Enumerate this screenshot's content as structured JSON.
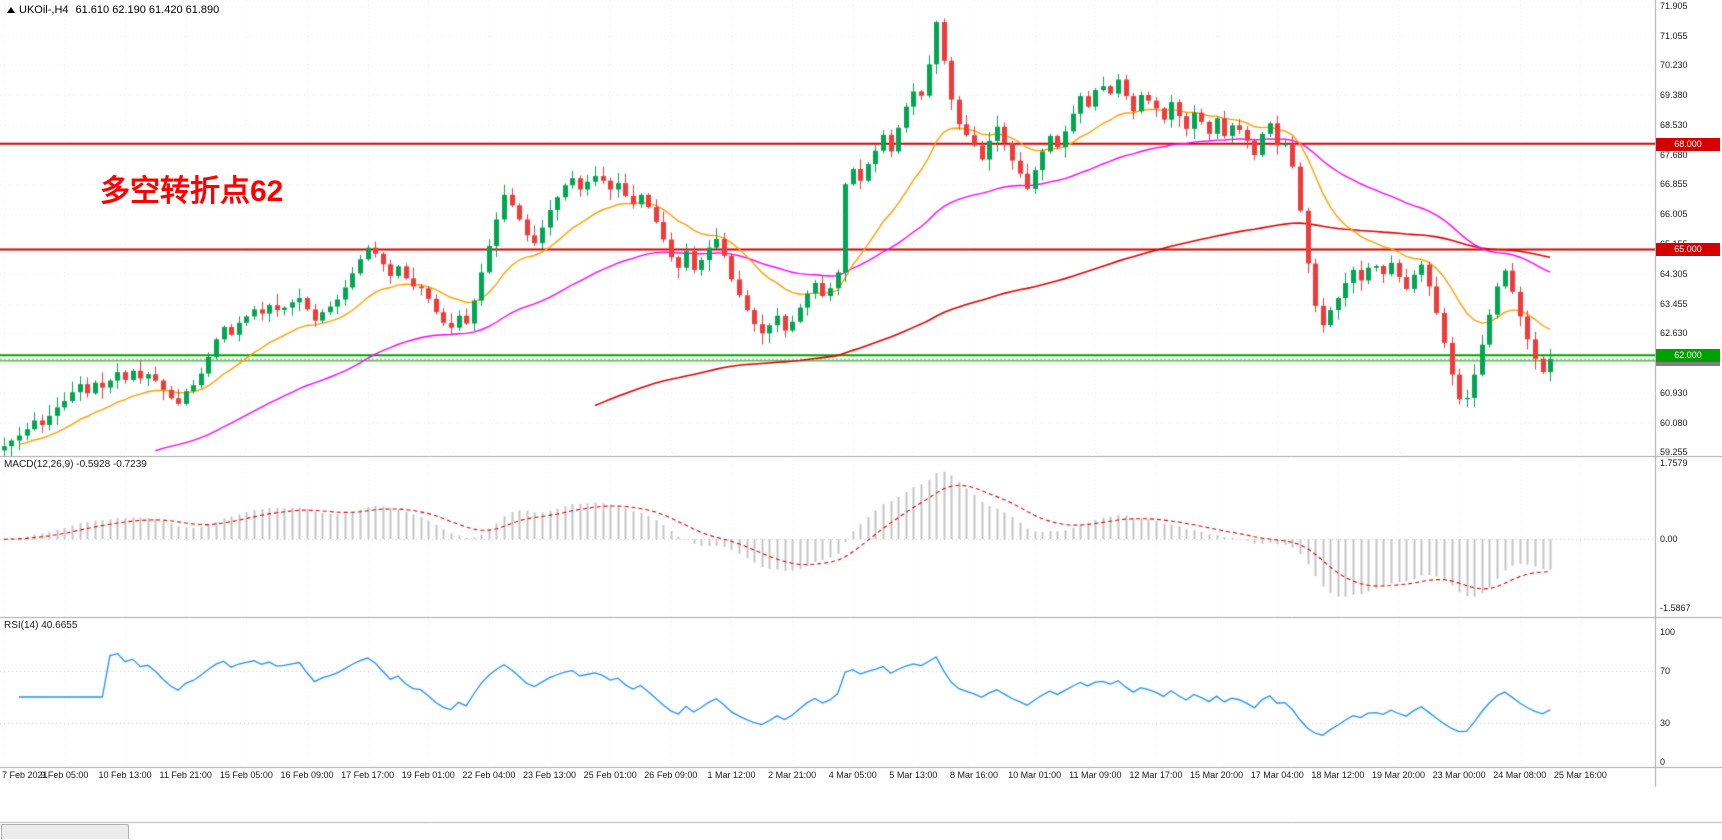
{
  "header": {
    "symbol": "UKOil-,H4",
    "ohlc": "61.610 62.190 61.420 61.890"
  },
  "annotation": {
    "text": "多空转折点62",
    "color": "#ff0000"
  },
  "bottom_tab": {
    "label": ""
  },
  "chart_data": {
    "type": "candlestick",
    "symbol": "UKOil-",
    "timeframe": "H4",
    "title": "UKOil-,H4",
    "ylim": [
      59.255,
      71.905
    ],
    "grid": true,
    "y_tick_labels": [
      "71.905",
      "71.055",
      "70.230",
      "69.380",
      "68.530",
      "67.680",
      "66.855",
      "66.005",
      "65.155",
      "64.305",
      "63.455",
      "62.630",
      "61.780",
      "60.930",
      "60.080",
      "59.255"
    ],
    "x_tick_labels": [
      "7 Feb 2021",
      "9 Feb 05:00",
      "10 Feb 13:00",
      "11 Feb 21:00",
      "15 Feb 05:00",
      "16 Feb 09:00",
      "17 Feb 17:00",
      "19 Feb 01:00",
      "22 Feb 04:00",
      "23 Feb 13:00",
      "25 Feb 01:00",
      "26 Feb 09:00",
      "1 Mar 12:00",
      "2 Mar 21:00",
      "4 Mar 05:00",
      "5 Mar 13:00",
      "8 Mar 16:00",
      "10 Mar 01:00",
      "11 Mar 09:00",
      "12 Mar 17:00",
      "15 Mar 20:00",
      "17 Mar 04:00",
      "18 Mar 12:00",
      "19 Mar 20:00",
      "23 Mar 00:00",
      "24 Mar 08:00",
      "25 Mar 16:00"
    ],
    "closes": [
      59.42,
      59.58,
      59.72,
      59.9,
      60.15,
      60.02,
      60.28,
      60.52,
      60.7,
      60.95,
      61.18,
      60.92,
      61.22,
      61.08,
      61.28,
      61.52,
      61.3,
      61.56,
      61.34,
      61.46,
      61.28,
      61.02,
      60.78,
      60.62,
      60.98,
      61.15,
      61.48,
      61.95,
      62.45,
      62.8,
      62.58,
      62.92,
      63.1,
      63.3,
      63.18,
      63.42,
      63.28,
      63.35,
      63.5,
      63.62,
      63.3,
      62.98,
      63.22,
      63.38,
      63.58,
      63.92,
      64.32,
      64.72,
      65.05,
      64.88,
      64.58,
      64.25,
      64.52,
      64.18,
      63.95,
      63.9,
      63.6,
      63.22,
      62.92,
      62.78,
      63.12,
      62.9,
      63.55,
      64.35,
      65.1,
      65.85,
      66.55,
      66.25,
      65.85,
      65.4,
      65.18,
      65.62,
      66.12,
      66.48,
      66.82,
      67.02,
      66.7,
      66.92,
      67.08,
      66.95,
      66.7,
      66.88,
      66.52,
      66.28,
      66.55,
      66.2,
      65.78,
      65.28,
      64.78,
      64.48,
      64.95,
      64.42,
      64.7,
      65.05,
      65.3,
      64.82,
      64.15,
      63.7,
      63.28,
      62.88,
      62.62,
      62.85,
      63.12,
      62.7,
      62.95,
      63.35,
      63.75,
      64.05,
      63.68,
      63.9,
      64.35,
      66.85,
      67.28,
      66.95,
      67.42,
      67.8,
      68.25,
      67.78,
      68.45,
      69.05,
      69.48,
      69.36,
      70.25,
      71.45,
      70.35,
      69.25,
      68.55,
      68.24,
      67.95,
      67.55,
      68.08,
      68.48,
      68.02,
      67.52,
      67.15,
      66.72,
      67.25,
      67.78,
      68.22,
      67.9,
      68.35,
      68.85,
      69.35,
      69.05,
      69.52,
      69.63,
      69.42,
      69.82,
      69.35,
      68.92,
      69.38,
      69.22,
      69.0,
      68.68,
      69.18,
      68.78,
      68.42,
      68.88,
      68.62,
      68.28,
      68.72,
      68.22,
      68.52,
      68.39,
      68.08,
      67.68,
      68.28,
      68.58,
      67.95,
      68.0,
      67.35,
      66.1,
      64.6,
      63.4,
      62.85,
      63.28,
      63.62,
      64.05,
      64.42,
      64.12,
      64.48,
      64.53,
      64.3,
      64.62,
      64.22,
      63.88,
      64.28,
      64.57,
      63.95,
      63.2,
      62.35,
      61.45,
      60.75,
      60.79,
      61.45,
      62.3,
      63.15,
      63.95,
      64.4,
      63.8,
      63.1,
      62.45,
      61.9,
      61.52,
      61.89
    ],
    "colors": {
      "up": "#00a651",
      "down": "#f13a3a",
      "ma_fast": "#ff9f00",
      "ma_mid": "#ff00ff",
      "ma_slow": "#e00000",
      "grid": "#ebebeb",
      "level": "#c9c9c9"
    },
    "moving_averages": [
      {
        "name": "fast",
        "period": 16,
        "color_key": "ma_fast"
      },
      {
        "name": "mid",
        "period": 50,
        "color_key": "ma_mid"
      },
      {
        "name": "slow",
        "period": 140,
        "color_key": "ma_slow"
      }
    ],
    "hlines": [
      {
        "price": 68.0,
        "label": "68.000",
        "color": "#d40000"
      },
      {
        "price": 65.0,
        "label": "65.000",
        "color": "#d40000"
      },
      {
        "price": 62.0,
        "label": "62.000",
        "color": "#00a000"
      },
      {
        "price": 61.84,
        "label": "",
        "color": "#00a000"
      }
    ],
    "current_price": {
      "value": 61.89,
      "label": "61.890",
      "badge_color": "#808080"
    },
    "macd": {
      "label": "MACD(12,26,9) -0.5928 -0.7239",
      "params": [
        12,
        26,
        9
      ],
      "value": -0.5928,
      "signal_value": -0.7239,
      "axis_labels": [
        "1.7579",
        "0.00",
        "-1.5867"
      ],
      "axis_values": [
        1.7579,
        0,
        -1.5867
      ],
      "hist_color": "#c4c4c4",
      "signal_color": "#dd0000"
    },
    "rsi": {
      "label": "RSI(14) 40.6655",
      "period": 14,
      "value": 40.6655,
      "axis_labels": [
        "100",
        "70",
        "30",
        "0"
      ],
      "axis_values": [
        100,
        70,
        30,
        0
      ],
      "levels": [
        70,
        30
      ],
      "line_color": "#1e90ff"
    }
  }
}
